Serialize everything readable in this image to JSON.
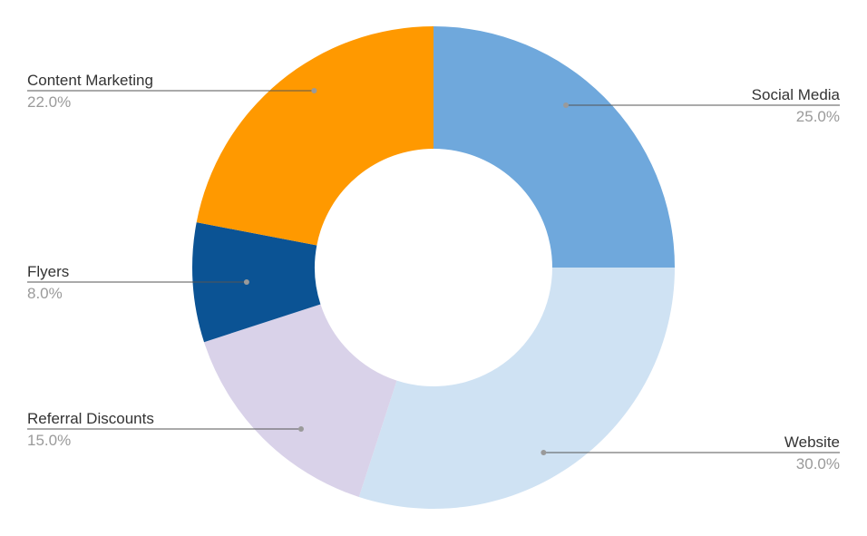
{
  "chart_data": {
    "type": "pie",
    "variant": "donut",
    "title": "",
    "slices": [
      {
        "label": "Social Media",
        "value": 25.0,
        "display": "25.0%",
        "color": "#6fa8dc"
      },
      {
        "label": "Website",
        "value": 30.0,
        "display": "30.0%",
        "color": "#cfe2f3"
      },
      {
        "label": "Referral Discounts",
        "value": 15.0,
        "display": "15.0%",
        "color": "#d9d2e9"
      },
      {
        "label": "Flyers",
        "value": 8.0,
        "display": "8.0%",
        "color": "#0b5394"
      },
      {
        "label": "Content Marketing",
        "value": 22.0,
        "display": "22.0%",
        "color": "#ff9900"
      }
    ],
    "start_angle": "12 o'clock",
    "direction": "clockwise",
    "legend": "none (labels beside slices with leader lines)"
  }
}
